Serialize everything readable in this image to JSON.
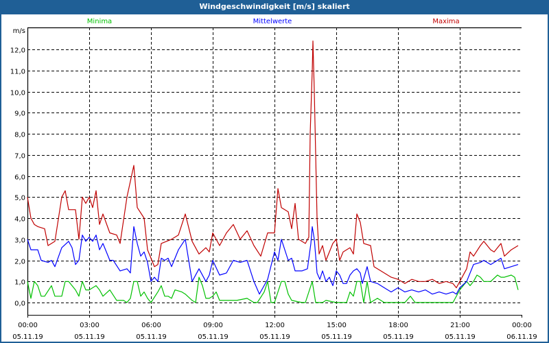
{
  "window": {
    "title": "Windgeschwindigkeit [m/s] skaliert"
  },
  "chart_data": {
    "type": "line",
    "title": "Windgeschwindigkeit [m/s] skaliert",
    "ylabel": "m/s",
    "xlabel": "",
    "ylim": [
      0,
      12
    ],
    "xlim_minutes": [
      0,
      1440
    ],
    "grid": true,
    "legend_placement": "top",
    "y_ticks": [
      "0,0",
      "1,0",
      "2,0",
      "3,0",
      "4,0",
      "5,0",
      "6,0",
      "7,0",
      "8,0",
      "9,0",
      "10,0",
      "11,0",
      "12,0"
    ],
    "x_ticks": [
      {
        "time": "00:00",
        "date": "05.11.19"
      },
      {
        "time": "03:00",
        "date": "05.11.19"
      },
      {
        "time": "06:00",
        "date": "05.11.19"
      },
      {
        "time": "09:00",
        "date": "05.11.19"
      },
      {
        "time": "12:00",
        "date": "05.11.19"
      },
      {
        "time": "15:00",
        "date": "05.11.19"
      },
      {
        "time": "18:00",
        "date": "05.11.19"
      },
      {
        "time": "21:00",
        "date": "05.11.19"
      },
      {
        "time": "00:00",
        "date": "06.11.19"
      }
    ],
    "x_unit": "minutes since 05.11.19 00:00",
    "series": [
      {
        "name": "Minima",
        "color": "#00c000",
        "points": [
          [
            0,
            1.0
          ],
          [
            10,
            0.2
          ],
          [
            20,
            1.0
          ],
          [
            30,
            0.8
          ],
          [
            40,
            0.3
          ],
          [
            50,
            0.3
          ],
          [
            70,
            0.8
          ],
          [
            80,
            0.3
          ],
          [
            100,
            0.3
          ],
          [
            110,
            1.0
          ],
          [
            120,
            1.0
          ],
          [
            140,
            0.6
          ],
          [
            150,
            0.3
          ],
          [
            160,
            1.0
          ],
          [
            170,
            0.6
          ],
          [
            180,
            0.6
          ],
          [
            200,
            0.8
          ],
          [
            210,
            0.6
          ],
          [
            220,
            0.3
          ],
          [
            240,
            0.6
          ],
          [
            260,
            0.1
          ],
          [
            280,
            0.1
          ],
          [
            290,
            0.0
          ],
          [
            300,
            0.2
          ],
          [
            310,
            1.0
          ],
          [
            320,
            1.0
          ],
          [
            330,
            0.3
          ],
          [
            340,
            0.5
          ],
          [
            350,
            0.2
          ],
          [
            360,
            0.0
          ],
          [
            380,
            0.5
          ],
          [
            390,
            0.8
          ],
          [
            400,
            0.3
          ],
          [
            410,
            0.3
          ],
          [
            420,
            0.2
          ],
          [
            430,
            0.6
          ],
          [
            450,
            0.5
          ],
          [
            460,
            0.4
          ],
          [
            480,
            0.1
          ],
          [
            490,
            0.0
          ],
          [
            500,
            1.2
          ],
          [
            510,
            0.8
          ],
          [
            520,
            0.2
          ],
          [
            530,
            0.2
          ],
          [
            540,
            0.3
          ],
          [
            550,
            0.5
          ],
          [
            560,
            0.1
          ],
          [
            580,
            0.1
          ],
          [
            610,
            0.1
          ],
          [
            640,
            0.2
          ],
          [
            660,
            0.0
          ],
          [
            670,
            0.0
          ],
          [
            690,
            0.5
          ],
          [
            700,
            1.0
          ],
          [
            710,
            0.0
          ],
          [
            720,
            0.0
          ],
          [
            740,
            1.0
          ],
          [
            750,
            1.0
          ],
          [
            760,
            0.4
          ],
          [
            770,
            0.1
          ],
          [
            800,
            0.0
          ],
          [
            810,
            0.0
          ],
          [
            830,
            1.0
          ],
          [
            840,
            0.0
          ],
          [
            860,
            0.0
          ],
          [
            870,
            0.1
          ],
          [
            900,
            0.0
          ],
          [
            910,
            0.0
          ],
          [
            930,
            0.0
          ],
          [
            940,
            0.5
          ],
          [
            950,
            0.3
          ],
          [
            960,
            1.0
          ],
          [
            970,
            1.0
          ],
          [
            980,
            0.0
          ],
          [
            990,
            1.0
          ],
          [
            1000,
            0.0
          ],
          [
            1010,
            0.1
          ],
          [
            1020,
            0.2
          ],
          [
            1040,
            0.0
          ],
          [
            1100,
            0.0
          ],
          [
            1116,
            0.3
          ],
          [
            1130,
            0.0
          ],
          [
            1240,
            0.0
          ],
          [
            1260,
            0.6
          ],
          [
            1280,
            1.0
          ],
          [
            1290,
            0.8
          ],
          [
            1300,
            1.0
          ],
          [
            1310,
            1.3
          ],
          [
            1320,
            1.2
          ],
          [
            1330,
            1.0
          ],
          [
            1350,
            1.0
          ],
          [
            1370,
            1.3
          ],
          [
            1380,
            1.2
          ],
          [
            1390,
            1.2
          ],
          [
            1410,
            1.3
          ],
          [
            1420,
            1.2
          ],
          [
            1430,
            0.6
          ]
        ]
      },
      {
        "name": "Mittelwerte",
        "color": "#0000ff",
        "points": [
          [
            0,
            3.0
          ],
          [
            10,
            2.5
          ],
          [
            30,
            2.5
          ],
          [
            40,
            2.0
          ],
          [
            60,
            1.9
          ],
          [
            70,
            2.0
          ],
          [
            80,
            1.7
          ],
          [
            100,
            2.6
          ],
          [
            120,
            2.9
          ],
          [
            130,
            2.6
          ],
          [
            140,
            1.8
          ],
          [
            150,
            2.0
          ],
          [
            160,
            3.2
          ],
          [
            170,
            2.9
          ],
          [
            180,
            3.1
          ],
          [
            190,
            2.9
          ],
          [
            200,
            3.2
          ],
          [
            210,
            2.5
          ],
          [
            220,
            2.8
          ],
          [
            240,
            2.0
          ],
          [
            250,
            2.0
          ],
          [
            270,
            1.5
          ],
          [
            290,
            1.6
          ],
          [
            300,
            1.4
          ],
          [
            310,
            3.6
          ],
          [
            320,
            2.8
          ],
          [
            330,
            2.2
          ],
          [
            340,
            2.4
          ],
          [
            350,
            1.9
          ],
          [
            360,
            1.0
          ],
          [
            370,
            1.2
          ],
          [
            380,
            1.0
          ],
          [
            390,
            2.1
          ],
          [
            400,
            2.0
          ],
          [
            410,
            2.1
          ],
          [
            420,
            1.7
          ],
          [
            440,
            2.5
          ],
          [
            460,
            3.0
          ],
          [
            480,
            1.0
          ],
          [
            500,
            1.6
          ],
          [
            520,
            1.0
          ],
          [
            530,
            1.3
          ],
          [
            540,
            2.0
          ],
          [
            560,
            1.3
          ],
          [
            580,
            1.4
          ],
          [
            600,
            2.0
          ],
          [
            620,
            1.9
          ],
          [
            640,
            2.0
          ],
          [
            660,
            1.0
          ],
          [
            676,
            0.4
          ],
          [
            700,
            1.1
          ],
          [
            720,
            2.4
          ],
          [
            730,
            2.0
          ],
          [
            740,
            3.0
          ],
          [
            760,
            2.0
          ],
          [
            770,
            2.1
          ],
          [
            780,
            1.5
          ],
          [
            800,
            1.5
          ],
          [
            816,
            1.6
          ],
          [
            826,
            2.8
          ],
          [
            830,
            3.6
          ],
          [
            836,
            3.0
          ],
          [
            844,
            1.4
          ],
          [
            852,
            1.1
          ],
          [
            860,
            1.5
          ],
          [
            870,
            1.0
          ],
          [
            880,
            1.2
          ],
          [
            890,
            0.8
          ],
          [
            900,
            1.5
          ],
          [
            910,
            1.3
          ],
          [
            920,
            0.9
          ],
          [
            930,
            0.9
          ],
          [
            940,
            1.3
          ],
          [
            950,
            1.5
          ],
          [
            960,
            1.6
          ],
          [
            970,
            1.4
          ],
          [
            976,
            0.9
          ],
          [
            990,
            1.7
          ],
          [
            1000,
            1.0
          ],
          [
            1020,
            0.9
          ],
          [
            1040,
            0.7
          ],
          [
            1060,
            0.5
          ],
          [
            1080,
            0.7
          ],
          [
            1100,
            0.5
          ],
          [
            1120,
            0.6
          ],
          [
            1140,
            0.5
          ],
          [
            1160,
            0.6
          ],
          [
            1180,
            0.4
          ],
          [
            1200,
            0.5
          ],
          [
            1220,
            0.4
          ],
          [
            1240,
            0.5
          ],
          [
            1250,
            0.4
          ],
          [
            1260,
            0.7
          ],
          [
            1280,
            1.0
          ],
          [
            1300,
            1.8
          ],
          [
            1320,
            1.9
          ],
          [
            1330,
            2.0
          ],
          [
            1350,
            1.8
          ],
          [
            1360,
            1.9
          ],
          [
            1380,
            2.1
          ],
          [
            1390,
            1.6
          ],
          [
            1410,
            1.7
          ],
          [
            1430,
            1.8
          ]
        ]
      },
      {
        "name": "Maxima",
        "color": "#c00000",
        "points": [
          [
            0,
            5.0
          ],
          [
            10,
            4.0
          ],
          [
            20,
            3.7
          ],
          [
            30,
            3.6
          ],
          [
            50,
            3.5
          ],
          [
            60,
            2.7
          ],
          [
            80,
            2.9
          ],
          [
            100,
            5.0
          ],
          [
            110,
            5.3
          ],
          [
            120,
            4.4
          ],
          [
            140,
            4.4
          ],
          [
            150,
            3.0
          ],
          [
            160,
            5.0
          ],
          [
            170,
            4.7
          ],
          [
            180,
            5.0
          ],
          [
            190,
            4.5
          ],
          [
            200,
            5.3
          ],
          [
            210,
            3.7
          ],
          [
            220,
            4.2
          ],
          [
            240,
            3.3
          ],
          [
            260,
            3.2
          ],
          [
            270,
            2.8
          ],
          [
            290,
            5.0
          ],
          [
            310,
            6.5
          ],
          [
            320,
            4.5
          ],
          [
            340,
            4.0
          ],
          [
            350,
            2.5
          ],
          [
            370,
            1.7
          ],
          [
            380,
            1.8
          ],
          [
            390,
            2.8
          ],
          [
            420,
            3.0
          ],
          [
            440,
            3.2
          ],
          [
            460,
            4.2
          ],
          [
            480,
            2.9
          ],
          [
            500,
            2.3
          ],
          [
            520,
            2.6
          ],
          [
            530,
            2.4
          ],
          [
            540,
            3.3
          ],
          [
            560,
            2.7
          ],
          [
            580,
            3.3
          ],
          [
            600,
            3.7
          ],
          [
            620,
            3.0
          ],
          [
            640,
            3.4
          ],
          [
            660,
            2.7
          ],
          [
            680,
            2.2
          ],
          [
            700,
            3.3
          ],
          [
            720,
            3.3
          ],
          [
            730,
            5.4
          ],
          [
            740,
            4.5
          ],
          [
            760,
            4.3
          ],
          [
            770,
            3.5
          ],
          [
            780,
            4.7
          ],
          [
            790,
            3.0
          ],
          [
            810,
            2.8
          ],
          [
            820,
            3.1
          ],
          [
            824,
            8.0
          ],
          [
            830,
            11.0
          ],
          [
            832,
            12.4
          ],
          [
            836,
            10.0
          ],
          [
            840,
            7.0
          ],
          [
            844,
            4.0
          ],
          [
            850,
            2.3
          ],
          [
            860,
            2.7
          ],
          [
            870,
            2.0
          ],
          [
            890,
            2.8
          ],
          [
            900,
            3.0
          ],
          [
            910,
            2.0
          ],
          [
            920,
            2.4
          ],
          [
            940,
            2.6
          ],
          [
            950,
            2.3
          ],
          [
            960,
            4.2
          ],
          [
            970,
            3.8
          ],
          [
            980,
            2.8
          ],
          [
            1000,
            2.7
          ],
          [
            1010,
            1.7
          ],
          [
            1030,
            1.5
          ],
          [
            1060,
            1.2
          ],
          [
            1080,
            1.1
          ],
          [
            1100,
            0.9
          ],
          [
            1120,
            1.1
          ],
          [
            1140,
            1.0
          ],
          [
            1160,
            1.0
          ],
          [
            1180,
            1.1
          ],
          [
            1200,
            0.9
          ],
          [
            1220,
            1.0
          ],
          [
            1240,
            0.9
          ],
          [
            1250,
            0.7
          ],
          [
            1260,
            1.0
          ],
          [
            1280,
            1.6
          ],
          [
            1290,
            2.4
          ],
          [
            1300,
            2.2
          ],
          [
            1320,
            2.7
          ],
          [
            1330,
            2.9
          ],
          [
            1350,
            2.5
          ],
          [
            1360,
            2.4
          ],
          [
            1380,
            2.8
          ],
          [
            1390,
            2.2
          ],
          [
            1410,
            2.5
          ],
          [
            1430,
            2.7
          ]
        ]
      }
    ]
  }
}
